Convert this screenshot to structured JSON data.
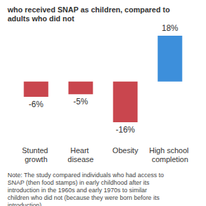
{
  "chart_data": {
    "type": "bar",
    "title": "who received SNAP as children, compared to adults who did not",
    "categories": [
      "Stunted growth",
      "Heart disease",
      "Obesity",
      "High school completion"
    ],
    "values": [
      -6,
      -5,
      -16,
      18
    ],
    "value_labels": [
      "-6%",
      "-5%",
      "-16%",
      "18%"
    ],
    "colors": [
      "#c9464e",
      "#c9464e",
      "#c9464e",
      "#3d8fdb"
    ],
    "ylim": [
      -16,
      18
    ],
    "data_labels": true,
    "tick_labels": "x",
    "grid": false,
    "note": "Note: The study compared individuals who had access to SNAP (then food stamps) in early childhood after its introduction in the 1960s and early 1970s to similar children who did not (because they were born before its introduction)"
  }
}
